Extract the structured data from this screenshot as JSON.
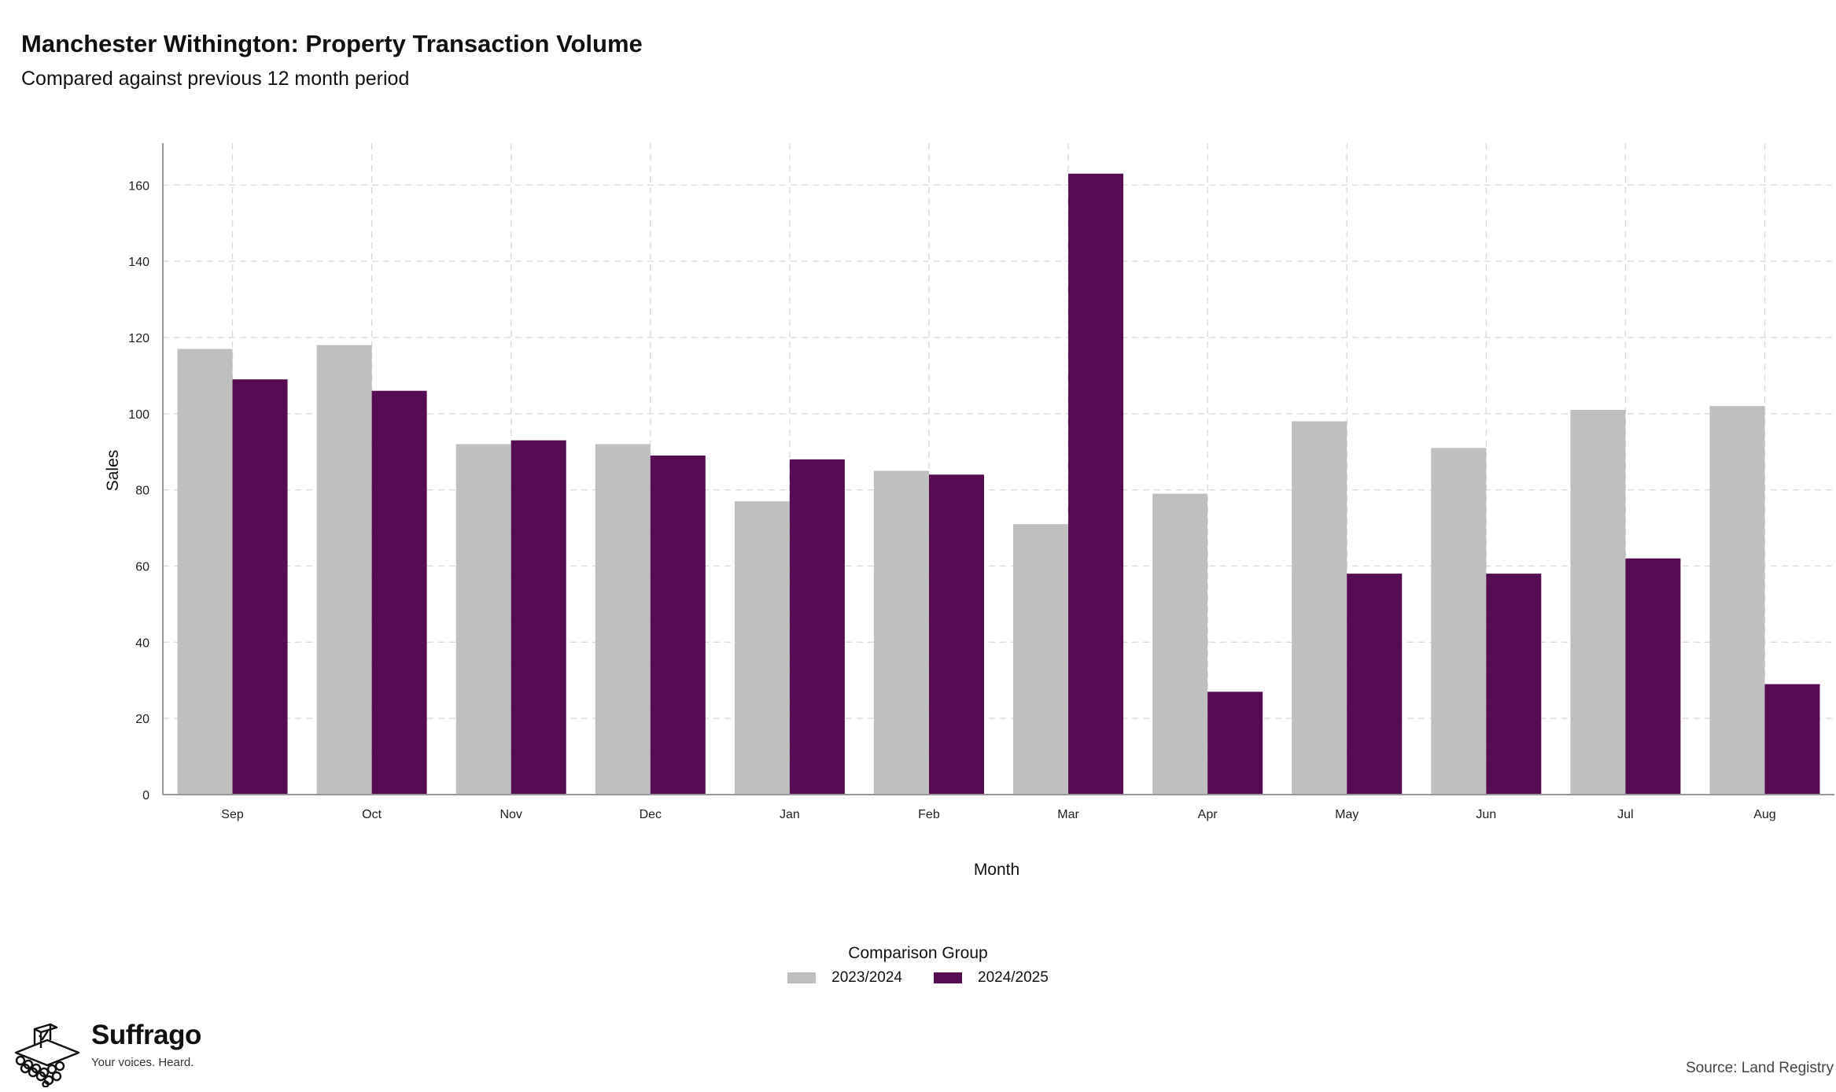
{
  "colors": {
    "previous": "#bfbfbf",
    "current": "#560c52",
    "grid": "#d9d9d9",
    "axis": "#999999"
  },
  "chart_data": {
    "type": "bar",
    "title": "Manchester Withington: Property Transaction Volume",
    "subtitle": "Compared against previous 12 month period",
    "xlabel": "Month",
    "ylabel": "Sales",
    "categories": [
      "Sep",
      "Oct",
      "Nov",
      "Dec",
      "Jan",
      "Feb",
      "Mar",
      "Apr",
      "May",
      "Jun",
      "Jul",
      "Aug"
    ],
    "series": [
      {
        "name": "2023/2024",
        "values": [
          117,
          118,
          92,
          92,
          77,
          85,
          71,
          79,
          98,
          91,
          101,
          102
        ]
      },
      {
        "name": "2024/2025",
        "values": [
          109,
          106,
          93,
          89,
          88,
          84,
          163,
          27,
          58,
          58,
          62,
          29
        ]
      }
    ],
    "ylim": [
      0,
      171
    ],
    "yticks": [
      0,
      20,
      40,
      60,
      80,
      100,
      120,
      140,
      160
    ],
    "grid": true,
    "legend": {
      "title": "Comparison Group",
      "position": "bottom"
    }
  },
  "footer": {
    "brand": "Suffrago",
    "tagline": "Your voices. Heard.",
    "source": "Source: Land Registry"
  }
}
